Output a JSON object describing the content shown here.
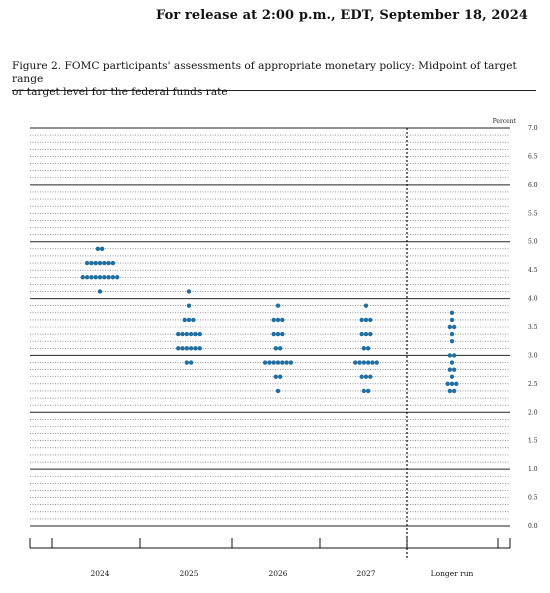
{
  "header": {
    "release": "For release at 2:00 p.m., EDT, September 18, 2024"
  },
  "figure": {
    "title_line1": "Figure 2.  FOMC participants' assessments of appropriate monetary policy:  Midpoint of target range",
    "title_line2": "or target level for the federal funds rate"
  },
  "chart_data": {
    "type": "scatter",
    "subtype": "dot-plot",
    "ylabel": "Percent",
    "ylim": [
      0,
      7.0
    ],
    "y_ticks": [
      "0.0",
      "0.5",
      "1.0",
      "1.5",
      "2.0",
      "2.5",
      "3.0",
      "3.5",
      "4.0",
      "4.5",
      "5.0",
      "5.5",
      "6.0",
      "6.5",
      "7.0"
    ],
    "categories": [
      "2024",
      "2025",
      "2026",
      "2027",
      "Longer run"
    ],
    "dot_color": "#1f6fa3",
    "grid": "dotted lines at every 0.125; solid lines at whole percents",
    "divider": "dashed vertical line before Longer run",
    "series": [
      {
        "category": "2024",
        "points": [
          {
            "y": 4.875,
            "n": 2
          },
          {
            "y": 4.625,
            "n": 7
          },
          {
            "y": 4.375,
            "n": 9
          },
          {
            "y": 4.125,
            "n": 1
          }
        ]
      },
      {
        "category": "2025",
        "points": [
          {
            "y": 4.125,
            "n": 1
          },
          {
            "y": 3.875,
            "n": 1
          },
          {
            "y": 3.625,
            "n": 3
          },
          {
            "y": 3.375,
            "n": 6
          },
          {
            "y": 3.125,
            "n": 6
          },
          {
            "y": 2.875,
            "n": 2
          }
        ]
      },
      {
        "category": "2026",
        "points": [
          {
            "y": 3.875,
            "n": 1
          },
          {
            "y": 3.625,
            "n": 3
          },
          {
            "y": 3.375,
            "n": 3
          },
          {
            "y": 3.125,
            "n": 2
          },
          {
            "y": 2.875,
            "n": 7
          },
          {
            "y": 2.625,
            "n": 2
          },
          {
            "y": 2.375,
            "n": 1
          }
        ]
      },
      {
        "category": "2027",
        "points": [
          {
            "y": 3.875,
            "n": 1
          },
          {
            "y": 3.625,
            "n": 3
          },
          {
            "y": 3.375,
            "n": 3
          },
          {
            "y": 3.125,
            "n": 2
          },
          {
            "y": 2.875,
            "n": 6
          },
          {
            "y": 2.625,
            "n": 3
          },
          {
            "y": 2.375,
            "n": 2
          }
        ]
      },
      {
        "category": "Longer run",
        "points": [
          {
            "y": 3.75,
            "n": 1
          },
          {
            "y": 3.625,
            "n": 1
          },
          {
            "y": 3.5,
            "n": 2
          },
          {
            "y": 3.375,
            "n": 1
          },
          {
            "y": 3.25,
            "n": 1
          },
          {
            "y": 3.0,
            "n": 2
          },
          {
            "y": 2.875,
            "n": 1
          },
          {
            "y": 2.75,
            "n": 2
          },
          {
            "y": 2.625,
            "n": 1
          },
          {
            "y": 2.5,
            "n": 3
          },
          {
            "y": 2.375,
            "n": 2
          }
        ]
      }
    ]
  }
}
